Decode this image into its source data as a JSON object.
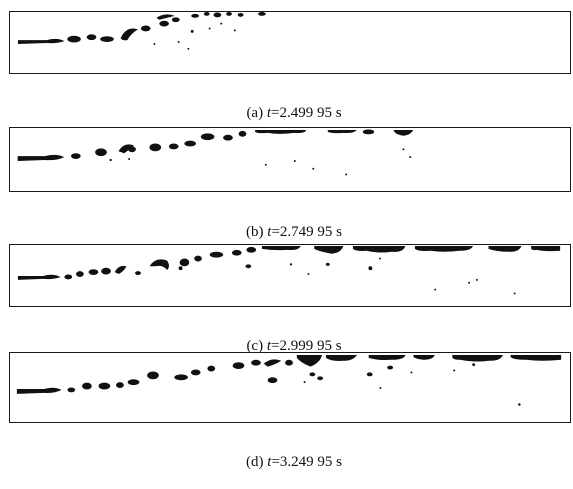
{
  "panels": [
    {
      "label": "(a)",
      "var": "t",
      "value": "=2.499 95 s"
    },
    {
      "label": "(b)",
      "var": "t",
      "value": "=2.749 95 s"
    },
    {
      "label": "(c)",
      "var": "t",
      "value": "=2.999 95 s"
    },
    {
      "label": "(d)",
      "var": "t",
      "value": "=3.249 95 s"
    }
  ],
  "colors": {
    "ink": "#111111",
    "frame": "#1a1a1a",
    "background": "#ffffff"
  }
}
